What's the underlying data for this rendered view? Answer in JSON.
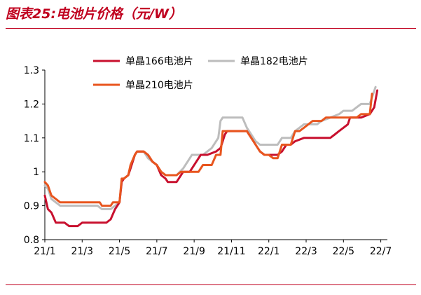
{
  "header": {
    "title": "图表25:电池片价格（元/W）"
  },
  "colors": {
    "accent": "#c0001e"
  },
  "chart_data": {
    "type": "line",
    "title": "图表25:电池片价格（元/W）",
    "xlabel": "",
    "ylabel": "",
    "ylim": [
      0.8,
      1.3
    ],
    "yticks": [
      "0.8",
      "0.9",
      "1",
      "1.1",
      "1.2",
      "1.3"
    ],
    "xlim": [
      0,
      78
    ],
    "xticks": [
      {
        "label": "21/1",
        "x": 0
      },
      {
        "label": "21/3",
        "x": 8.5
      },
      {
        "label": "21/5",
        "x": 17
      },
      {
        "label": "21/7",
        "x": 25.5
      },
      {
        "label": "21/9",
        "x": 34
      },
      {
        "label": "21/11",
        "x": 42.5
      },
      {
        "label": "22/1",
        "x": 51
      },
      {
        "label": "22/3",
        "x": 59.5
      },
      {
        "label": "22/5",
        "x": 68
      },
      {
        "label": "22/7",
        "x": 76.5
      }
    ],
    "grid": false,
    "legend_position": "top",
    "series": [
      {
        "name": "单晶166电池片",
        "color": "#c8102e",
        "points": [
          [
            0,
            0.93
          ],
          [
            0.7,
            0.89
          ],
          [
            1.5,
            0.88
          ],
          [
            2.5,
            0.85
          ],
          [
            4.5,
            0.85
          ],
          [
            5.5,
            0.84
          ],
          [
            7.5,
            0.84
          ],
          [
            8.5,
            0.85
          ],
          [
            10,
            0.85
          ],
          [
            14,
            0.85
          ],
          [
            15,
            0.86
          ],
          [
            16,
            0.89
          ],
          [
            17,
            0.91
          ],
          [
            17.5,
            0.97
          ],
          [
            18,
            0.98
          ],
          [
            19,
            0.99
          ],
          [
            19.5,
            1.01
          ],
          [
            20.5,
            1.05
          ],
          [
            21,
            1.06
          ],
          [
            22.5,
            1.06
          ],
          [
            23.5,
            1.05
          ],
          [
            24.5,
            1.03
          ],
          [
            25.5,
            1.02
          ],
          [
            26.5,
            0.99
          ],
          [
            27.5,
            0.98
          ],
          [
            28,
            0.97
          ],
          [
            30,
            0.97
          ],
          [
            31.5,
            1.0
          ],
          [
            33,
            1.0
          ],
          [
            34.5,
            1.03
          ],
          [
            35.5,
            1.05
          ],
          [
            37,
            1.05
          ],
          [
            39,
            1.06
          ],
          [
            40,
            1.07
          ],
          [
            41,
            1.11
          ],
          [
            41.5,
            1.12
          ],
          [
            46,
            1.12
          ],
          [
            47,
            1.1
          ],
          [
            48,
            1.08
          ],
          [
            49,
            1.06
          ],
          [
            50,
            1.05
          ],
          [
            53,
            1.05
          ],
          [
            54,
            1.06
          ],
          [
            55,
            1.08
          ],
          [
            56,
            1.08
          ],
          [
            57,
            1.09
          ],
          [
            59,
            1.1
          ],
          [
            64,
            1.1
          ],
          [
            65,
            1.1
          ],
          [
            66,
            1.11
          ],
          [
            67,
            1.12
          ],
          [
            68,
            1.13
          ],
          [
            69,
            1.14
          ],
          [
            69.5,
            1.16
          ],
          [
            72,
            1.16
          ],
          [
            74,
            1.17
          ],
          [
            75,
            1.19
          ],
          [
            75.7,
            1.24
          ]
        ]
      },
      {
        "name": "单晶182电池片",
        "color": "#bdbdbd",
        "points": [
          [
            0,
            0.96
          ],
          [
            0.7,
            0.95
          ],
          [
            1.5,
            0.92
          ],
          [
            2.5,
            0.91
          ],
          [
            3.5,
            0.9
          ],
          [
            10,
            0.9
          ],
          [
            12,
            0.9
          ],
          [
            13,
            0.89
          ],
          [
            15,
            0.89
          ],
          [
            16,
            0.9
          ],
          [
            17,
            0.91
          ],
          [
            17.5,
            0.97
          ],
          [
            18,
            0.98
          ],
          [
            19,
            0.99
          ],
          [
            19.5,
            1.01
          ],
          [
            20.5,
            1.05
          ],
          [
            21,
            1.06
          ],
          [
            22.5,
            1.06
          ],
          [
            23.5,
            1.04
          ],
          [
            24.5,
            1.03
          ],
          [
            25.5,
            1.02
          ],
          [
            26.5,
            1.0
          ],
          [
            27.5,
            0.99
          ],
          [
            30,
            0.99
          ],
          [
            31.5,
            1.01
          ],
          [
            32.5,
            1.03
          ],
          [
            33.5,
            1.05
          ],
          [
            36,
            1.05
          ],
          [
            38,
            1.07
          ],
          [
            39.5,
            1.1
          ],
          [
            40,
            1.15
          ],
          [
            40.5,
            1.16
          ],
          [
            45,
            1.16
          ],
          [
            46,
            1.13
          ],
          [
            47,
            1.11
          ],
          [
            48,
            1.09
          ],
          [
            49,
            1.08
          ],
          [
            53,
            1.08
          ],
          [
            54,
            1.1
          ],
          [
            56,
            1.1
          ],
          [
            57,
            1.12
          ],
          [
            59,
            1.14
          ],
          [
            62,
            1.14
          ],
          [
            63,
            1.15
          ],
          [
            65,
            1.16
          ],
          [
            67,
            1.17
          ],
          [
            68,
            1.18
          ],
          [
            70,
            1.18
          ],
          [
            71,
            1.19
          ],
          [
            72,
            1.2
          ],
          [
            74,
            1.2
          ],
          [
            75.3,
            1.25
          ]
        ]
      },
      {
        "name": "单晶210电池片",
        "color": "#e8551e",
        "points": [
          [
            0,
            0.97
          ],
          [
            0.7,
            0.96
          ],
          [
            1.5,
            0.93
          ],
          [
            2.5,
            0.92
          ],
          [
            3.5,
            0.91
          ],
          [
            12.5,
            0.91
          ],
          [
            13,
            0.9
          ],
          [
            15,
            0.9
          ],
          [
            15.5,
            0.91
          ],
          [
            17,
            0.91
          ],
          [
            17.5,
            0.98
          ],
          [
            18,
            0.98
          ],
          [
            19,
            0.99
          ],
          [
            19.5,
            1.02
          ],
          [
            20.5,
            1.05
          ],
          [
            21,
            1.06
          ],
          [
            22.5,
            1.06
          ],
          [
            23.5,
            1.05
          ],
          [
            24.5,
            1.03
          ],
          [
            25.5,
            1.02
          ],
          [
            26.5,
            1.0
          ],
          [
            27.5,
            0.99
          ],
          [
            30,
            0.99
          ],
          [
            31,
            1.0
          ],
          [
            35,
            1.0
          ],
          [
            36,
            1.02
          ],
          [
            38,
            1.02
          ],
          [
            39,
            1.05
          ],
          [
            40,
            1.05
          ],
          [
            40.5,
            1.12
          ],
          [
            46,
            1.12
          ],
          [
            46.5,
            1.11
          ],
          [
            47,
            1.1
          ],
          [
            48,
            1.08
          ],
          [
            49,
            1.06
          ],
          [
            50,
            1.05
          ],
          [
            51,
            1.05
          ],
          [
            52,
            1.04
          ],
          [
            53,
            1.04
          ],
          [
            54,
            1.08
          ],
          [
            56,
            1.08
          ],
          [
            57,
            1.12
          ],
          [
            58,
            1.12
          ],
          [
            59,
            1.13
          ],
          [
            60,
            1.14
          ],
          [
            61,
            1.15
          ],
          [
            63,
            1.15
          ],
          [
            64,
            1.16
          ],
          [
            71,
            1.16
          ],
          [
            72,
            1.17
          ],
          [
            74,
            1.17
          ],
          [
            74.5,
            1.23
          ]
        ]
      }
    ]
  }
}
